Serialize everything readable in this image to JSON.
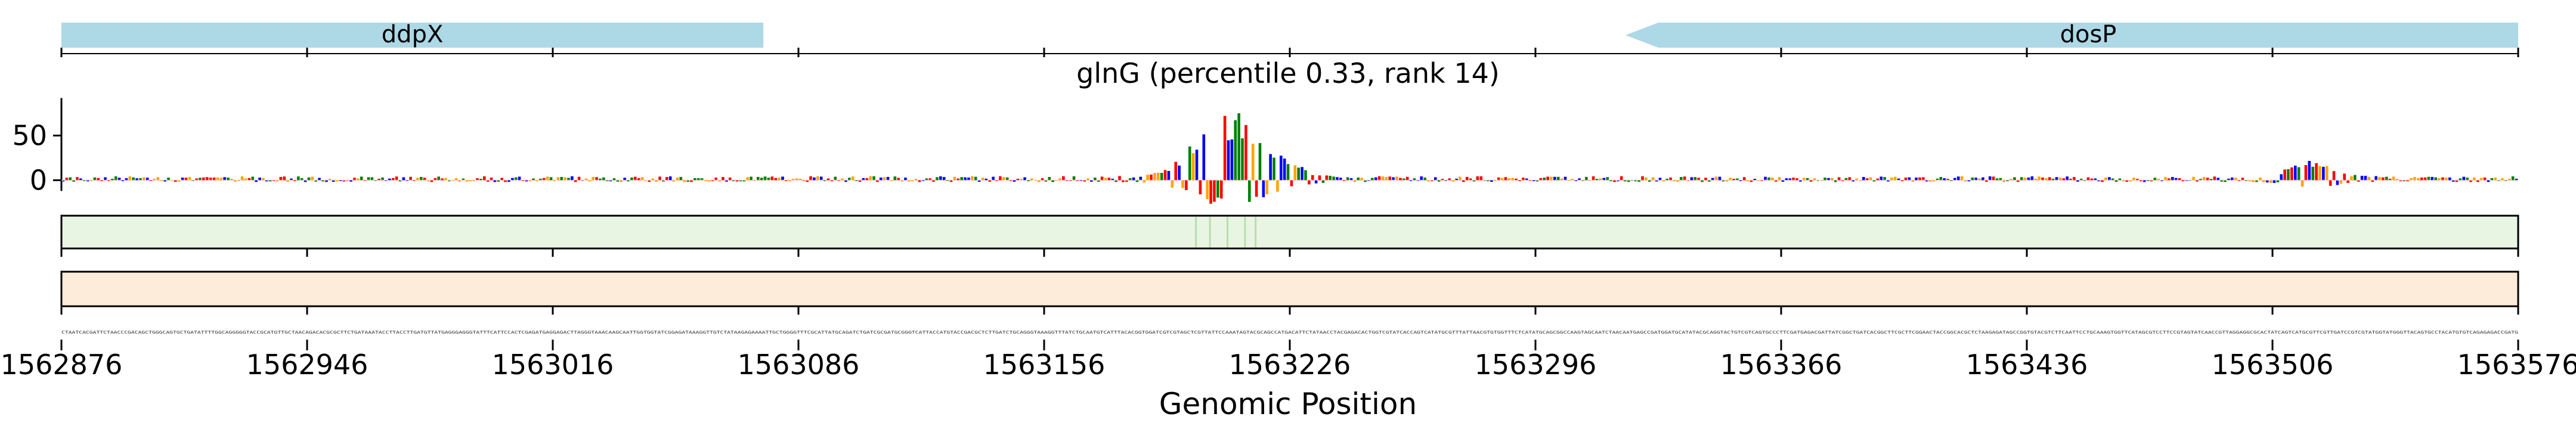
{
  "chart_data": {
    "type": "genome-track",
    "title": "glnG (percentile 0.33, rank 14)",
    "xlabel": "Genomic Position",
    "xlim": [
      1562876,
      1563576
    ],
    "x_ticks": [
      1562876,
      1562946,
      1563016,
      1563086,
      1563156,
      1563226,
      1563296,
      1563366,
      1563436,
      1563506,
      1563576
    ],
    "x_tick_labels": [
      "1562876",
      "1562946",
      "1563016",
      "1563086",
      "1563156",
      "1563226",
      "1563296",
      "1563366",
      "1563436",
      "1563506",
      "1563576"
    ],
    "genes": [
      {
        "name": "ddpX",
        "start": 1562876,
        "end": 1563076,
        "strand": "+",
        "color": "#add8e6"
      },
      {
        "name": "dosP",
        "start": 1563331,
        "end": 1563576,
        "strand": "-",
        "color": "#add8e6"
      }
    ],
    "logo_track": {
      "y_ticks": [
        0,
        50
      ],
      "y_tick_labels": [
        "0",
        "50"
      ],
      "ylim": [
        -25,
        95
      ],
      "peaks": [
        {
          "center": 1563210,
          "height": 75
        },
        {
          "center": 1563517,
          "height": 20
        }
      ],
      "base_colors": {
        "A": "#008000",
        "C": "#0000ff",
        "G": "#ffa500",
        "T": "#ff0000"
      }
    },
    "heat_tracks": [
      {
        "name": "track-green",
        "color": "#e9f5e3"
      },
      {
        "name": "track-orange",
        "color": "#fdecd9"
      }
    ],
    "sequence": "CTAATCACGATTCTAACCCGACAGCTGGGCAGTGCTGATATTTTGGCAGGGGGTACCGCATGTTGCTAACAGACACGCGCTTCTGATAAATACCTTACCTTGATGTTATGAGGGAGGGTATTTCATTCCACTCGAGATGAGGAGACTTAGGGTAAACAAGCAATTGGTGGTATCGGAGATAAAGGTTGTCTATAAGAGAAAATTGCTGGGGTTTCGCATTATGCAGATCTGATCGCGATGCGGGTCATTACCATGTACCGACGCTCTTGATCTGCAGGGTAAAGGTTTATCTGCAATGTCATTTACACGGTGGATCGTCGTAGCTCGTTATTCCAAATAGTACGCAGCCATGACATTCTATAACCTACGAGACACTGGTCGTATCACCAGTCATATGCGTTTATTAACGTGTGGTTTCTCATATGCAGCGGCCAAGTAGCAATCTAACAATGAGCCGATGGATGCATATACGCAGGTACTGTCGTCAGTGCCCTTCGATGAGACGATTATCGGCTGATCACGGCTTCGCTTCGGAACTACCGGCACGCTCTAAGAGATAGCCGGTGTACGTCTTCAATTCCTGCAAAGTGGTTCATAGCGTCCTTCCGTAGTATCAACCGTTAGGAGGCGCACTATCAGTCATGCGTTCGTTGATCCGTCGTATGGTATGGGTTACAGTGCCTACATGTGTCAGAGAGACCGATG"
  }
}
